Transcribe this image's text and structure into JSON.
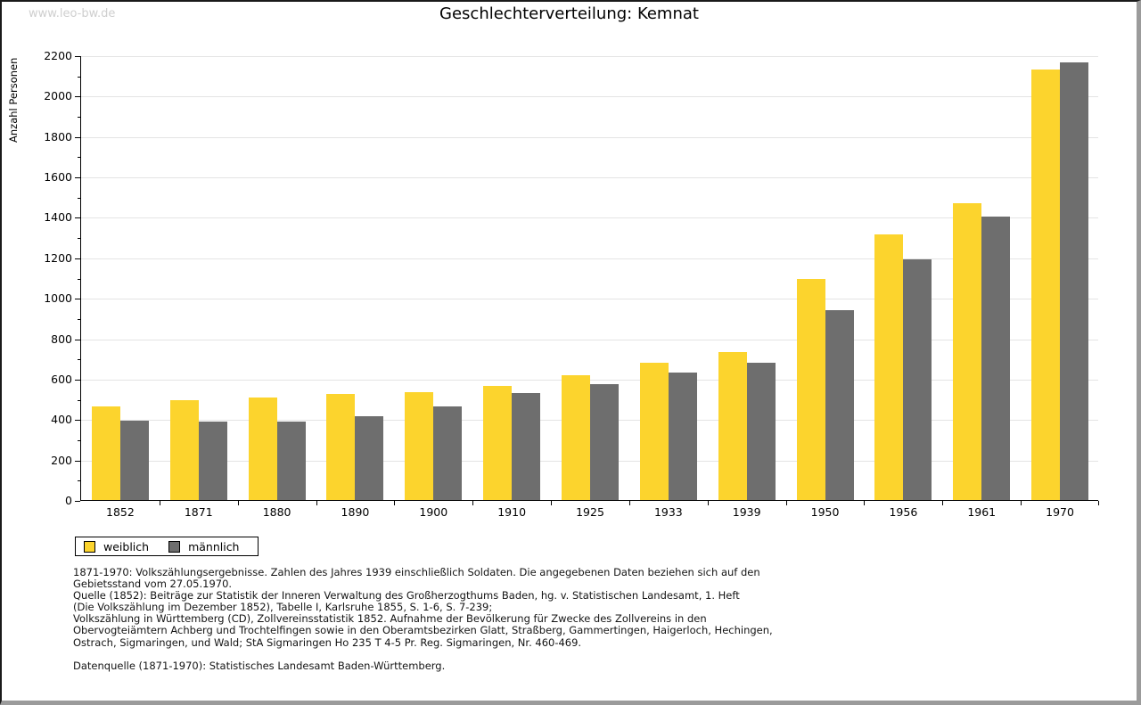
{
  "watermark": "www.leo-bw.de",
  "chart_data": {
    "type": "bar",
    "title": "Geschlechterverteilung: Kemnat",
    "xlabel": "",
    "ylabel": "Anzahl Personen",
    "categories": [
      "1852",
      "1871",
      "1880",
      "1890",
      "1900",
      "1910",
      "1925",
      "1933",
      "1939",
      "1950",
      "1956",
      "1961",
      "1970"
    ],
    "series": [
      {
        "name": "weiblich",
        "color": "#fcd42d",
        "values": [
          463,
          494,
          508,
          525,
          532,
          566,
          617,
          679,
          731,
          1092,
          1314,
          1470,
          2128
        ]
      },
      {
        "name": "männlich",
        "color": "#6e6e6e",
        "values": [
          392,
          389,
          389,
          416,
          463,
          529,
          573,
          629,
          680,
          938,
          1190,
          1402,
          2166
        ]
      }
    ],
    "ylim": [
      0,
      2200
    ],
    "yticks": [
      0,
      200,
      400,
      600,
      800,
      1000,
      1200,
      1400,
      1600,
      1800,
      2000,
      2200
    ],
    "ytick_minor_step": 100,
    "grid": true,
    "gridline_color": "#e4e4e4",
    "legend_position": "bottom-left"
  },
  "legend": {
    "items": [
      {
        "label": "weiblich",
        "color": "#fcd42d"
      },
      {
        "label": "männlich",
        "color": "#6e6e6e"
      }
    ]
  },
  "footnotes": {
    "lines": [
      "1871-1970: Volkszählungsergebnisse. Zahlen des Jahres 1939 einschließlich Soldaten. Die angegebenen Daten beziehen sich auf den",
      "Gebietsstand vom 27.05.1970.",
      "Quelle (1852): Beiträge zur Statistik der Inneren Verwaltung des Großherzogthums Baden, hg. v. Statistischen Landesamt, 1. Heft",
      "(Die Volkszählung im Dezember 1852), Tabelle I, Karlsruhe 1855, S. 1-6, S. 7-239;",
      "Volkszählung in Württemberg (CD), Zollvereinsstatistik 1852. Aufnahme der Bevölkerung für Zwecke des Zollvereins in den",
      "Obervogteiämtern Achberg und Trochtelfingen sowie in den Oberamtsbezirken Glatt, Straßberg, Gammertingen, Haigerloch, Hechingen,",
      "Ostrach, Sigmaringen, und Wald; StA Sigmaringen Ho 235 T 4-5 Pr. Reg. Sigmaringen, Nr. 460-469."
    ],
    "datasource": "Datenquelle (1871-1970): Statistisches Landesamt Baden-Württemberg."
  }
}
